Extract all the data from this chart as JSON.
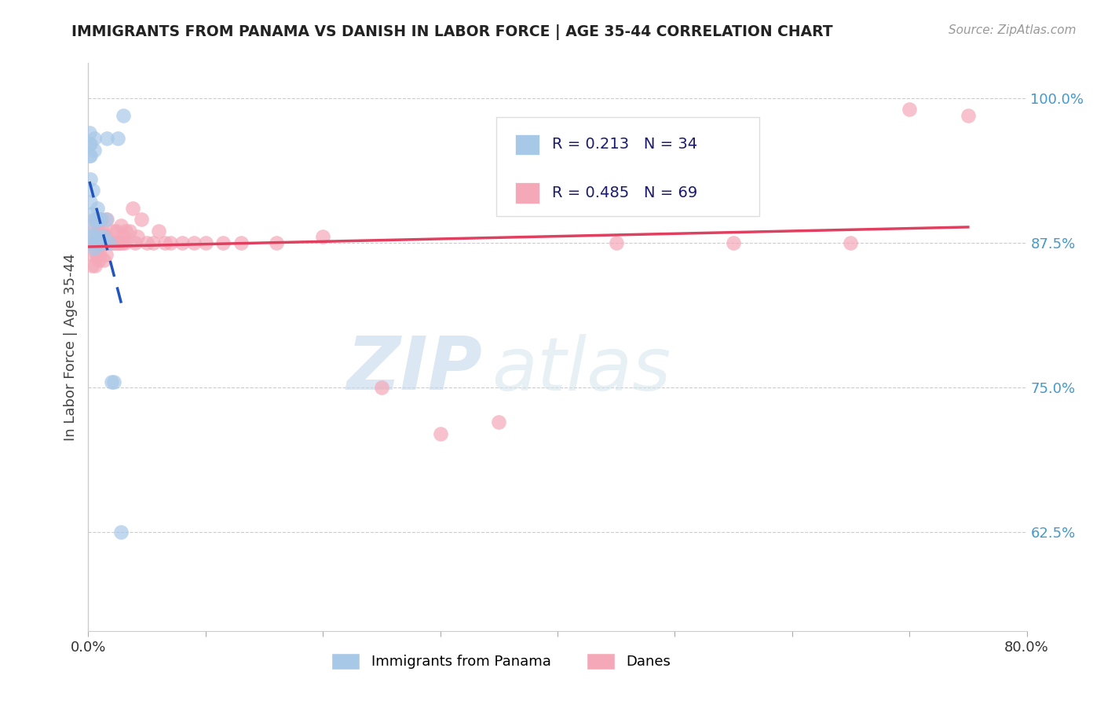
{
  "title": "IMMIGRANTS FROM PANAMA VS DANISH IN LABOR FORCE | AGE 35-44 CORRELATION CHART",
  "source": "Source: ZipAtlas.com",
  "ylabel": "In Labor Force | Age 35-44",
  "xmin": 0.0,
  "xmax": 0.8,
  "ymin": 0.54,
  "ymax": 1.03,
  "yticks": [
    0.625,
    0.75,
    0.875,
    1.0
  ],
  "xticks": [
    0.0,
    0.1,
    0.2,
    0.3,
    0.4,
    0.5,
    0.6,
    0.7,
    0.8
  ],
  "legend_panama": "Immigrants from Panama",
  "legend_danes": "Danes",
  "r_panama": "0.213",
  "n_panama": "34",
  "r_danes": "0.485",
  "n_danes": "69",
  "panama_color": "#a8c8e8",
  "danes_color": "#f4a8b8",
  "panama_trend_color": "#2255bb",
  "danes_trend_color": "#e04060",
  "background_color": "#ffffff",
  "watermark_zip": "ZIP",
  "watermark_atlas": "atlas",
  "panama_x": [
    0.001,
    0.001,
    0.001,
    0.002,
    0.002,
    0.002,
    0.002,
    0.003,
    0.003,
    0.003,
    0.004,
    0.004,
    0.005,
    0.005,
    0.005,
    0.006,
    0.006,
    0.007,
    0.007,
    0.008,
    0.009,
    0.009,
    0.01,
    0.011,
    0.012,
    0.013,
    0.015,
    0.016,
    0.018,
    0.02,
    0.022,
    0.025,
    0.028,
    0.03
  ],
  "panama_y": [
    0.97,
    0.96,
    0.95,
    0.96,
    0.95,
    0.93,
    0.91,
    0.9,
    0.89,
    0.88,
    0.92,
    0.88,
    0.965,
    0.955,
    0.87,
    0.895,
    0.875,
    0.895,
    0.875,
    0.905,
    0.895,
    0.88,
    0.895,
    0.875,
    0.875,
    0.88,
    0.895,
    0.965,
    0.875,
    0.755,
    0.755,
    0.965,
    0.625,
    0.985
  ],
  "danes_x": [
    0.002,
    0.003,
    0.003,
    0.004,
    0.004,
    0.005,
    0.005,
    0.006,
    0.006,
    0.007,
    0.007,
    0.008,
    0.008,
    0.009,
    0.009,
    0.01,
    0.01,
    0.011,
    0.011,
    0.012,
    0.012,
    0.013,
    0.013,
    0.014,
    0.015,
    0.015,
    0.016,
    0.016,
    0.017,
    0.018,
    0.019,
    0.02,
    0.021,
    0.022,
    0.023,
    0.024,
    0.025,
    0.026,
    0.027,
    0.028,
    0.029,
    0.03,
    0.031,
    0.032,
    0.035,
    0.038,
    0.04,
    0.042,
    0.045,
    0.05,
    0.055,
    0.06,
    0.065,
    0.07,
    0.08,
    0.09,
    0.1,
    0.115,
    0.13,
    0.16,
    0.2,
    0.25,
    0.3,
    0.35,
    0.45,
    0.55,
    0.65,
    0.7,
    0.75
  ],
  "danes_y": [
    0.875,
    0.875,
    0.855,
    0.885,
    0.865,
    0.895,
    0.875,
    0.875,
    0.855,
    0.875,
    0.865,
    0.865,
    0.885,
    0.875,
    0.86,
    0.885,
    0.865,
    0.875,
    0.895,
    0.875,
    0.885,
    0.86,
    0.875,
    0.875,
    0.88,
    0.865,
    0.875,
    0.895,
    0.875,
    0.875,
    0.875,
    0.875,
    0.885,
    0.875,
    0.875,
    0.885,
    0.875,
    0.875,
    0.875,
    0.89,
    0.875,
    0.88,
    0.875,
    0.885,
    0.885,
    0.905,
    0.875,
    0.88,
    0.895,
    0.875,
    0.875,
    0.885,
    0.875,
    0.875,
    0.875,
    0.875,
    0.875,
    0.875,
    0.875,
    0.875,
    0.88,
    0.75,
    0.71,
    0.72,
    0.875,
    0.875,
    0.875,
    0.99,
    0.985
  ]
}
